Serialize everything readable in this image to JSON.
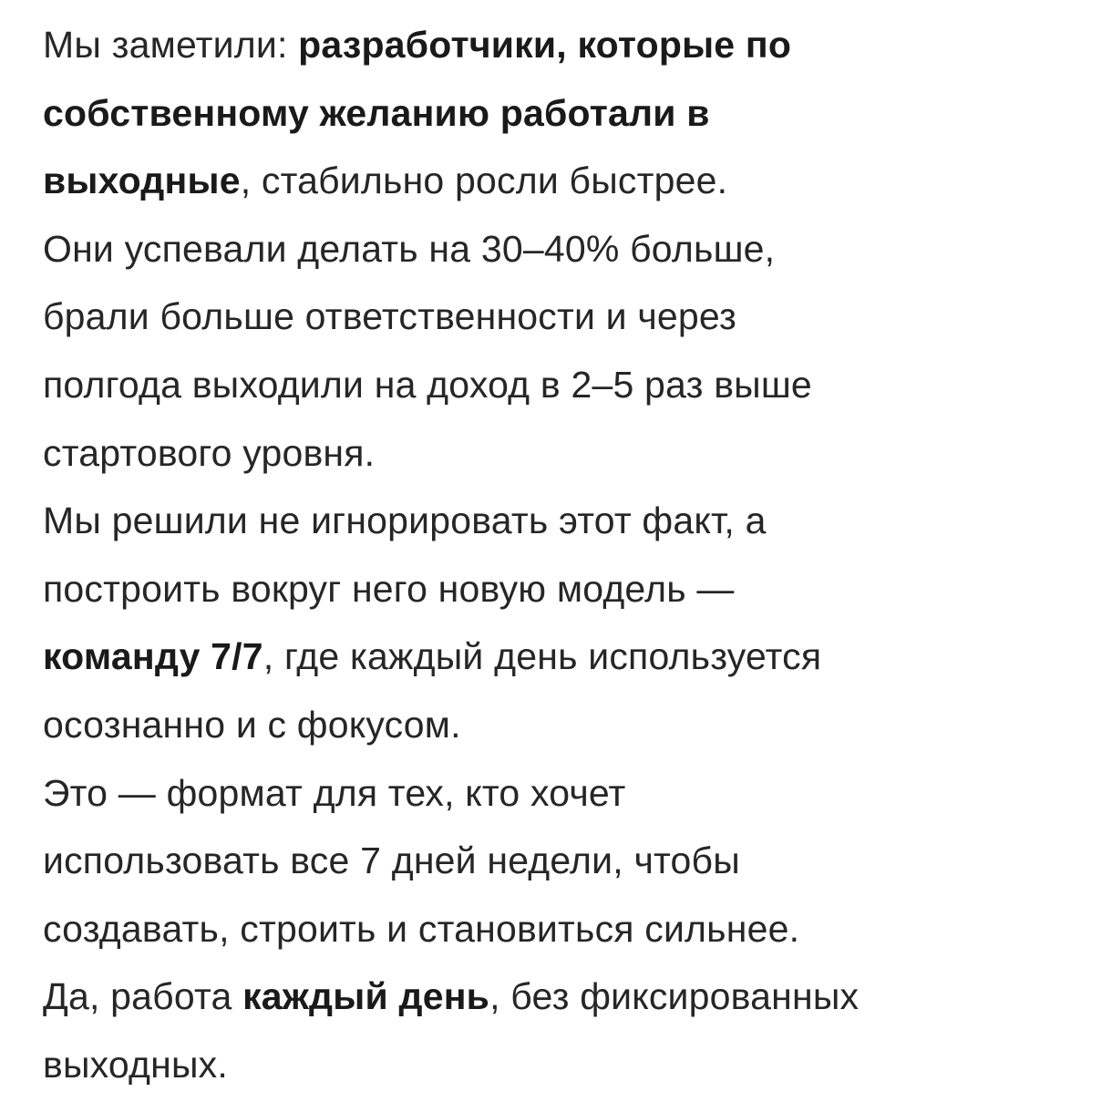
{
  "document": {
    "lines": [
      [
        {
          "t": "Мы заметили: ",
          "b": false
        },
        {
          "t": "разработчики, которые по",
          "b": true
        }
      ],
      [
        {
          "t": "собственному желанию работали в",
          "b": true
        }
      ],
      [
        {
          "t": "выходные",
          "b": true
        },
        {
          "t": ", стабильно росли быстрее.",
          "b": false
        }
      ],
      [
        {
          "t": "Они успевали делать на 30–40% больше,",
          "b": false
        }
      ],
      [
        {
          "t": "брали больше ответственности и через",
          "b": false
        }
      ],
      [
        {
          "t": "полгода выходили на доход в 2–5 раз выше",
          "b": false
        }
      ],
      [
        {
          "t": "стартового уровня.",
          "b": false
        }
      ],
      [
        {
          "t": "Мы решили не игнорировать этот факт, а",
          "b": false
        }
      ],
      [
        {
          "t": "построить вокруг него новую модель —",
          "b": false
        }
      ],
      [
        {
          "t": "команду 7/7",
          "b": true
        },
        {
          "t": ", где каждый день используется",
          "b": false
        }
      ],
      [
        {
          "t": "осознанно и с фокусом.",
          "b": false
        }
      ],
      [
        {
          "t": "Это — формат для тех, кто хочет",
          "b": false
        }
      ],
      [
        {
          "t": "использовать все 7 дней недели, чтобы",
          "b": false
        }
      ],
      [
        {
          "t": "создавать, строить и становиться сильнее.",
          "b": false
        }
      ],
      [
        {
          "t": "Да, работа ",
          "b": false
        },
        {
          "t": "каждый день",
          "b": true
        },
        {
          "t": ", без фиксированных",
          "b": false
        }
      ],
      [
        {
          "t": "выходных.",
          "b": false
        }
      ]
    ]
  }
}
